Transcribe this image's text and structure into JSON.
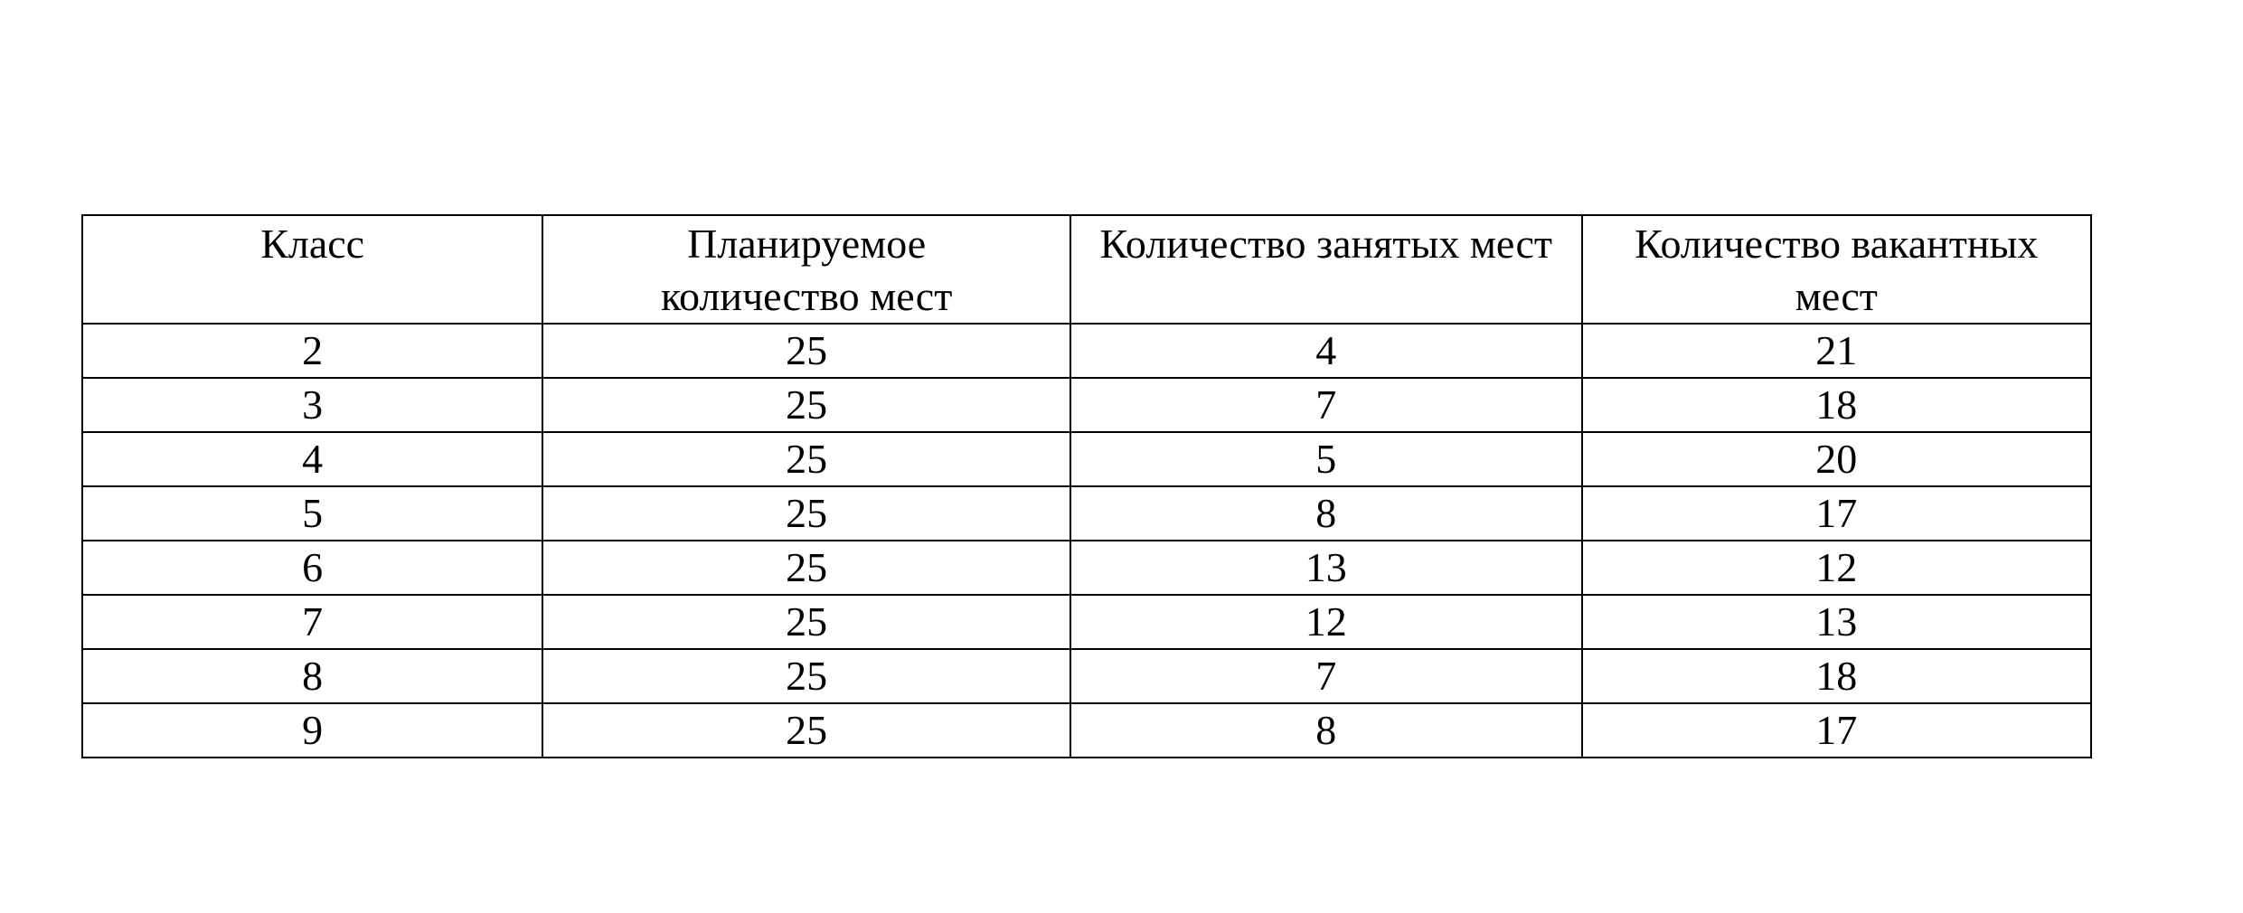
{
  "table": {
    "headers": [
      "Класс",
      "Планируемое количество мест",
      "Количество занятых мест",
      "Количество вакантных мест"
    ],
    "rows": [
      [
        "2",
        "25",
        "4",
        "21"
      ],
      [
        "3",
        "25",
        "7",
        "18"
      ],
      [
        "4",
        "25",
        "5",
        "20"
      ],
      [
        "5",
        "25",
        "8",
        "17"
      ],
      [
        "6",
        "25",
        "13",
        "12"
      ],
      [
        "7",
        "25",
        "12",
        "13"
      ],
      [
        "8",
        "25",
        "7",
        "18"
      ],
      [
        "9",
        "25",
        "8",
        "17"
      ]
    ]
  }
}
